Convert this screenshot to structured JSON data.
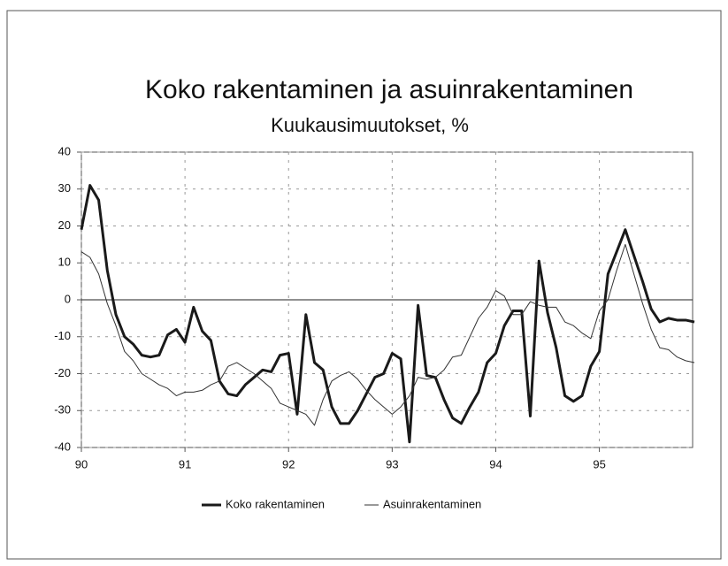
{
  "chart_data": {
    "type": "line",
    "title": "Koko rakentaminen ja asuinrakentaminen",
    "subtitle": "Kuukausimuutokset, %",
    "x": [
      90,
      90.083,
      90.167,
      90.25,
      90.333,
      90.417,
      90.5,
      90.583,
      90.667,
      90.75,
      90.833,
      90.917,
      91,
      91.083,
      91.167,
      91.25,
      91.333,
      91.417,
      91.5,
      91.583,
      91.667,
      91.75,
      91.833,
      91.917,
      92,
      92.083,
      92.167,
      92.25,
      92.333,
      92.417,
      92.5,
      92.583,
      92.667,
      92.75,
      92.833,
      92.917,
      93,
      93.083,
      93.167,
      93.25,
      93.333,
      93.417,
      93.5,
      93.583,
      93.667,
      93.75,
      93.833,
      93.917,
      94,
      94.083,
      94.167,
      94.25,
      94.333,
      94.417,
      94.5,
      94.583,
      94.667,
      94.75,
      94.833,
      94.917,
      95,
      95.083,
      95.167,
      95.25,
      95.333,
      95.417,
      95.5,
      95.583,
      95.667,
      95.75,
      95.833,
      95.917
    ],
    "series": [
      {
        "name": "Koko rakentaminen",
        "color": "#1a1a1a",
        "width": 3,
        "values": [
          19,
          31,
          27,
          8,
          -4,
          -10,
          -12,
          -15,
          -15.5,
          -15,
          -9.5,
          -8,
          -11.5,
          -2,
          -8.5,
          -11,
          -22,
          -25.5,
          -26,
          -23,
          -21,
          -19,
          -19.5,
          -15,
          -14.5,
          -31,
          -4,
          -17,
          -19,
          -29,
          -33.5,
          -33.5,
          -30,
          -25.5,
          -21,
          -20,
          -14.5,
          -16,
          -38.5,
          -1.5,
          -20.5,
          -21,
          -27,
          -32,
          -33.5,
          -29,
          -25,
          -17,
          -14.5,
          -7,
          -3,
          -3,
          -31.5,
          10.5,
          -3.5,
          -13,
          -26,
          -27.5,
          -26,
          -18,
          -14,
          7,
          13,
          19,
          12,
          5,
          -2.5,
          -6,
          -5,
          -5.5,
          -5.5,
          -6
        ]
      },
      {
        "name": "Asuinrakentaminen",
        "color": "#333333",
        "width": 1,
        "values": [
          13,
          11.5,
          7,
          -1,
          -7,
          -14,
          -16.5,
          -20,
          -21.5,
          -23,
          -24,
          -26,
          -25,
          -25,
          -24.5,
          -23,
          -22,
          -18,
          -17,
          -18.5,
          -20,
          -22,
          -24,
          -28,
          -29,
          -30,
          -31,
          -34,
          -27,
          -22,
          -20.5,
          -19.5,
          -21.5,
          -24.5,
          -27,
          -29,
          -31,
          -29,
          -26,
          -21,
          -21.5,
          -21,
          -19,
          -15.5,
          -15,
          -10,
          -5,
          -2,
          2.5,
          1,
          -4,
          -4,
          -0.5,
          -1.5,
          -2,
          -2,
          -6,
          -7,
          -9,
          -10.5,
          -3,
          0,
          8,
          15,
          7,
          -1,
          -8,
          -13,
          -13.5,
          -15.5,
          -16.5,
          -17
        ]
      }
    ],
    "xlim": [
      90,
      95.9
    ],
    "xticks": [
      90,
      91,
      92,
      93,
      94,
      95
    ],
    "ylim": [
      -40,
      40
    ],
    "yticks": [
      -40,
      -30,
      -20,
      -10,
      0,
      10,
      20,
      30,
      40
    ],
    "grid": true,
    "legend": "bottom"
  }
}
